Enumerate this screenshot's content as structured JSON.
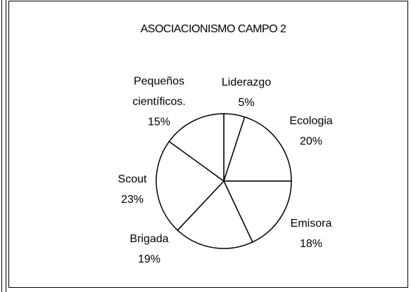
{
  "chart_data": {
    "type": "pie",
    "title": "ASOCIACIONISMO CAMPO 2",
    "categories": [
      "Liderazgo",
      "Ecologia",
      "Emisora",
      "Brigada",
      "Scout",
      "Pequeños científicos."
    ],
    "values": [
      5,
      20,
      18,
      19,
      23,
      15
    ],
    "value_labels": [
      "5%",
      "20%",
      "18%",
      "19%",
      "23%",
      "15%"
    ],
    "color": "#ffffff"
  }
}
